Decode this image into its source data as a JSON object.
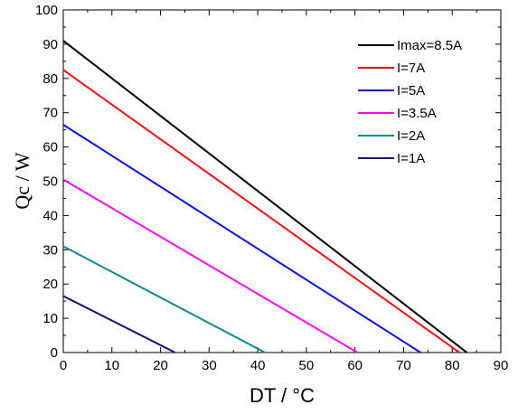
{
  "chart_data": {
    "type": "line",
    "xlabel": "DT / °C",
    "ylabel": "Qc / W",
    "xlim": [
      0,
      90
    ],
    "ylim": [
      0,
      100
    ],
    "xticks": [
      0,
      10,
      20,
      30,
      40,
      50,
      60,
      70,
      80,
      90
    ],
    "yticks": [
      0,
      10,
      20,
      30,
      40,
      50,
      60,
      70,
      80,
      90,
      100
    ],
    "grid": false,
    "legend_position": "top-right",
    "series": [
      {
        "name": "Imax=8.5A",
        "color": "#000000",
        "points": [
          [
            0,
            91
          ],
          [
            83,
            0
          ]
        ]
      },
      {
        "name": "I=7A",
        "color": "#ee1111",
        "points": [
          [
            0,
            82.5
          ],
          [
            81.5,
            0
          ]
        ]
      },
      {
        "name": "I=5A",
        "color": "#1111dd",
        "points": [
          [
            0,
            66.5
          ],
          [
            73.5,
            0
          ]
        ]
      },
      {
        "name": "I=3.5A",
        "color": "#ee11ee",
        "points": [
          [
            0,
            50.5
          ],
          [
            60.5,
            0
          ]
        ]
      },
      {
        "name": "I=2A",
        "color": "#118888",
        "points": [
          [
            0,
            31
          ],
          [
            41.5,
            0
          ]
        ]
      },
      {
        "name": "I=1A",
        "color": "#111177",
        "points": [
          [
            0,
            16.5
          ],
          [
            23,
            0
          ]
        ]
      }
    ]
  }
}
